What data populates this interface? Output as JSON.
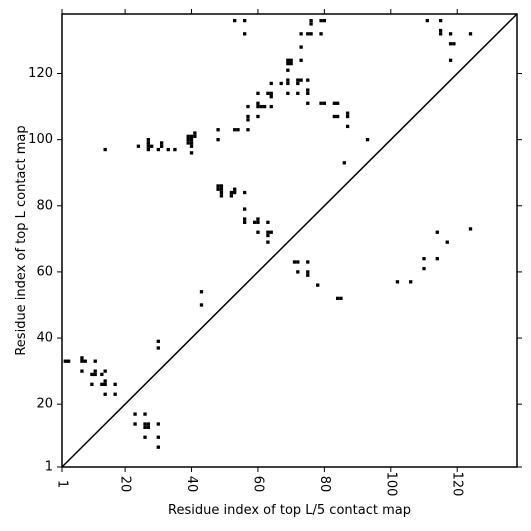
{
  "chart_data": {
    "type": "scatter",
    "title": "",
    "xlabel": "Residue index of top L/5 contact map",
    "ylabel": "Residue index of top L contact map",
    "xlim": [
      1,
      138
    ],
    "ylim": [
      1,
      138
    ],
    "xticks": [
      1,
      20,
      40,
      60,
      80,
      100,
      120
    ],
    "yticks": [
      1,
      20,
      40,
      60,
      80,
      100,
      120
    ],
    "tick_labels_x": [
      "1",
      "20",
      "40",
      "60",
      "80",
      "100",
      "120"
    ],
    "tick_labels_y": [
      "1",
      "20",
      "40",
      "60",
      "80",
      "100",
      "120"
    ],
    "grid": false,
    "diagonal": true,
    "marker_color": "#000000",
    "series": [
      {
        "points": [
          [
            2,
            33
          ],
          [
            3,
            33
          ],
          [
            7,
            33
          ],
          [
            7,
            34
          ],
          [
            8,
            33
          ],
          [
            11,
            33
          ],
          [
            7,
            30
          ],
          [
            10,
            29
          ],
          [
            11,
            29
          ],
          [
            11,
            30
          ],
          [
            13,
            29
          ],
          [
            14,
            30
          ],
          [
            10,
            26
          ],
          [
            13,
            26
          ],
          [
            14,
            26
          ],
          [
            14,
            27
          ],
          [
            17,
            26
          ],
          [
            14,
            23
          ],
          [
            17,
            23
          ],
          [
            23,
            17
          ],
          [
            26,
            17
          ],
          [
            23,
            14
          ],
          [
            26,
            14
          ],
          [
            27,
            14
          ],
          [
            26,
            13
          ],
          [
            27,
            13
          ],
          [
            30,
            14
          ],
          [
            26,
            10
          ],
          [
            30,
            10
          ],
          [
            30,
            7
          ],
          [
            30,
            37
          ],
          [
            30,
            39
          ],
          [
            43,
            50
          ],
          [
            43,
            54
          ],
          [
            14,
            97
          ],
          [
            24,
            98
          ],
          [
            27,
            97
          ],
          [
            27,
            98
          ],
          [
            27,
            99
          ],
          [
            27,
            100
          ],
          [
            28,
            98
          ],
          [
            30,
            97
          ],
          [
            31,
            98
          ],
          [
            31,
            99
          ],
          [
            33,
            97
          ],
          [
            35,
            97
          ],
          [
            39,
            99
          ],
          [
            39,
            100
          ],
          [
            39,
            101
          ],
          [
            40,
            98
          ],
          [
            40,
            99
          ],
          [
            40,
            100
          ],
          [
            40,
            101
          ],
          [
            41,
            101
          ],
          [
            41,
            102
          ],
          [
            40,
            96
          ],
          [
            48,
            100
          ],
          [
            48,
            103
          ],
          [
            53,
            103
          ],
          [
            54,
            103
          ],
          [
            57,
            103
          ],
          [
            57,
            106
          ],
          [
            57,
            107
          ],
          [
            57,
            110
          ],
          [
            60,
            107
          ],
          [
            60,
            110
          ],
          [
            60,
            111
          ],
          [
            61,
            110
          ],
          [
            62,
            110
          ],
          [
            48,
            85
          ],
          [
            48,
            86
          ],
          [
            49,
            85
          ],
          [
            49,
            86
          ],
          [
            49,
            84
          ],
          [
            49,
            83
          ],
          [
            52,
            83
          ],
          [
            52,
            84
          ],
          [
            53,
            84
          ],
          [
            53,
            85
          ],
          [
            56,
            84
          ],
          [
            56,
            79
          ],
          [
            56,
            76
          ],
          [
            56,
            75
          ],
          [
            59,
            75
          ],
          [
            60,
            75
          ],
          [
            60,
            76
          ],
          [
            60,
            72
          ],
          [
            63,
            72
          ],
          [
            64,
            72
          ],
          [
            63,
            71
          ],
          [
            63,
            69
          ],
          [
            63,
            75
          ],
          [
            60,
            114
          ],
          [
            63,
            114
          ],
          [
            64,
            113
          ],
          [
            64,
            114
          ],
          [
            64,
            117
          ],
          [
            64,
            110
          ],
          [
            67,
            117
          ],
          [
            69,
            114
          ],
          [
            69,
            117
          ],
          [
            69,
            118
          ],
          [
            69,
            121
          ],
          [
            69,
            123
          ],
          [
            69,
            124
          ],
          [
            70,
            123
          ],
          [
            70,
            124
          ],
          [
            72,
            117
          ],
          [
            72,
            118
          ],
          [
            72,
            114
          ],
          [
            73,
            118
          ],
          [
            73,
            124
          ],
          [
            73,
            128
          ],
          [
            73,
            132
          ],
          [
            75,
            132
          ],
          [
            76,
            132
          ],
          [
            76,
            135
          ],
          [
            76,
            136
          ],
          [
            75,
            118
          ],
          [
            75,
            115
          ],
          [
            75,
            114
          ],
          [
            75,
            111
          ],
          [
            79,
            111
          ],
          [
            80,
            111
          ],
          [
            79,
            132
          ],
          [
            79,
            136
          ],
          [
            80,
            136
          ],
          [
            83,
            111
          ],
          [
            83,
            107
          ],
          [
            84,
            107
          ],
          [
            84,
            111
          ],
          [
            87,
            107
          ],
          [
            87,
            108
          ],
          [
            87,
            104
          ],
          [
            86,
            93
          ],
          [
            93,
            100
          ],
          [
            53,
            136
          ],
          [
            56,
            136
          ],
          [
            56,
            132
          ],
          [
            71,
            63
          ],
          [
            72,
            63
          ],
          [
            72,
            60
          ],
          [
            75,
            60
          ],
          [
            75,
            59
          ],
          [
            75,
            63
          ],
          [
            78,
            56
          ],
          [
            84,
            52
          ],
          [
            85,
            52
          ],
          [
            102,
            57
          ],
          [
            106,
            57
          ],
          [
            110,
            61
          ],
          [
            110,
            64
          ],
          [
            114,
            64
          ],
          [
            114,
            72
          ],
          [
            117,
            69
          ],
          [
            111,
            136
          ],
          [
            115,
            136
          ],
          [
            115,
            133
          ],
          [
            115,
            132
          ],
          [
            118,
            132
          ],
          [
            118,
            129
          ],
          [
            119,
            129
          ],
          [
            118,
            124
          ],
          [
            124,
            132
          ],
          [
            124,
            73
          ]
        ]
      }
    ]
  }
}
